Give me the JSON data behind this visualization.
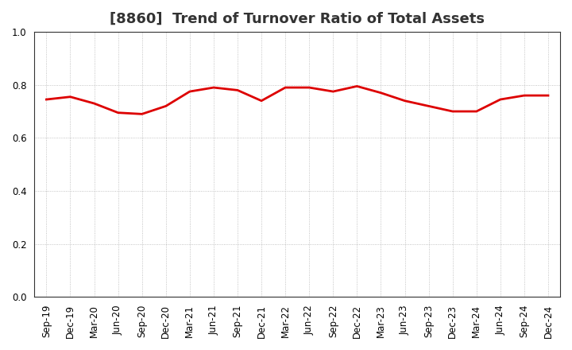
{
  "title": "[8860]  Trend of Turnover Ratio of Total Assets",
  "labels": [
    "Sep-19",
    "Dec-19",
    "Mar-20",
    "Jun-20",
    "Sep-20",
    "Dec-20",
    "Mar-21",
    "Jun-21",
    "Sep-21",
    "Dec-21",
    "Mar-22",
    "Jun-22",
    "Sep-22",
    "Dec-22",
    "Mar-23",
    "Jun-23",
    "Sep-23",
    "Dec-23",
    "Mar-24",
    "Jun-24",
    "Sep-24",
    "Dec-24"
  ],
  "values": [
    0.745,
    0.755,
    0.73,
    0.695,
    0.69,
    0.72,
    0.775,
    0.79,
    0.78,
    0.74,
    0.79,
    0.79,
    0.775,
    0.795,
    0.77,
    0.74,
    0.72,
    0.7,
    0.7,
    0.745,
    0.76,
    0.76
  ],
  "ylim": [
    0.0,
    1.0
  ],
  "yticks": [
    0.0,
    0.2,
    0.4,
    0.6,
    0.8,
    1.0
  ],
  "line_color": "#dd0000",
  "line_width": 2.0,
  "background_color": "#ffffff",
  "grid_color": "#aaaaaa",
  "title_fontsize": 13,
  "title_color": "#333333",
  "tick_fontsize": 8.5
}
